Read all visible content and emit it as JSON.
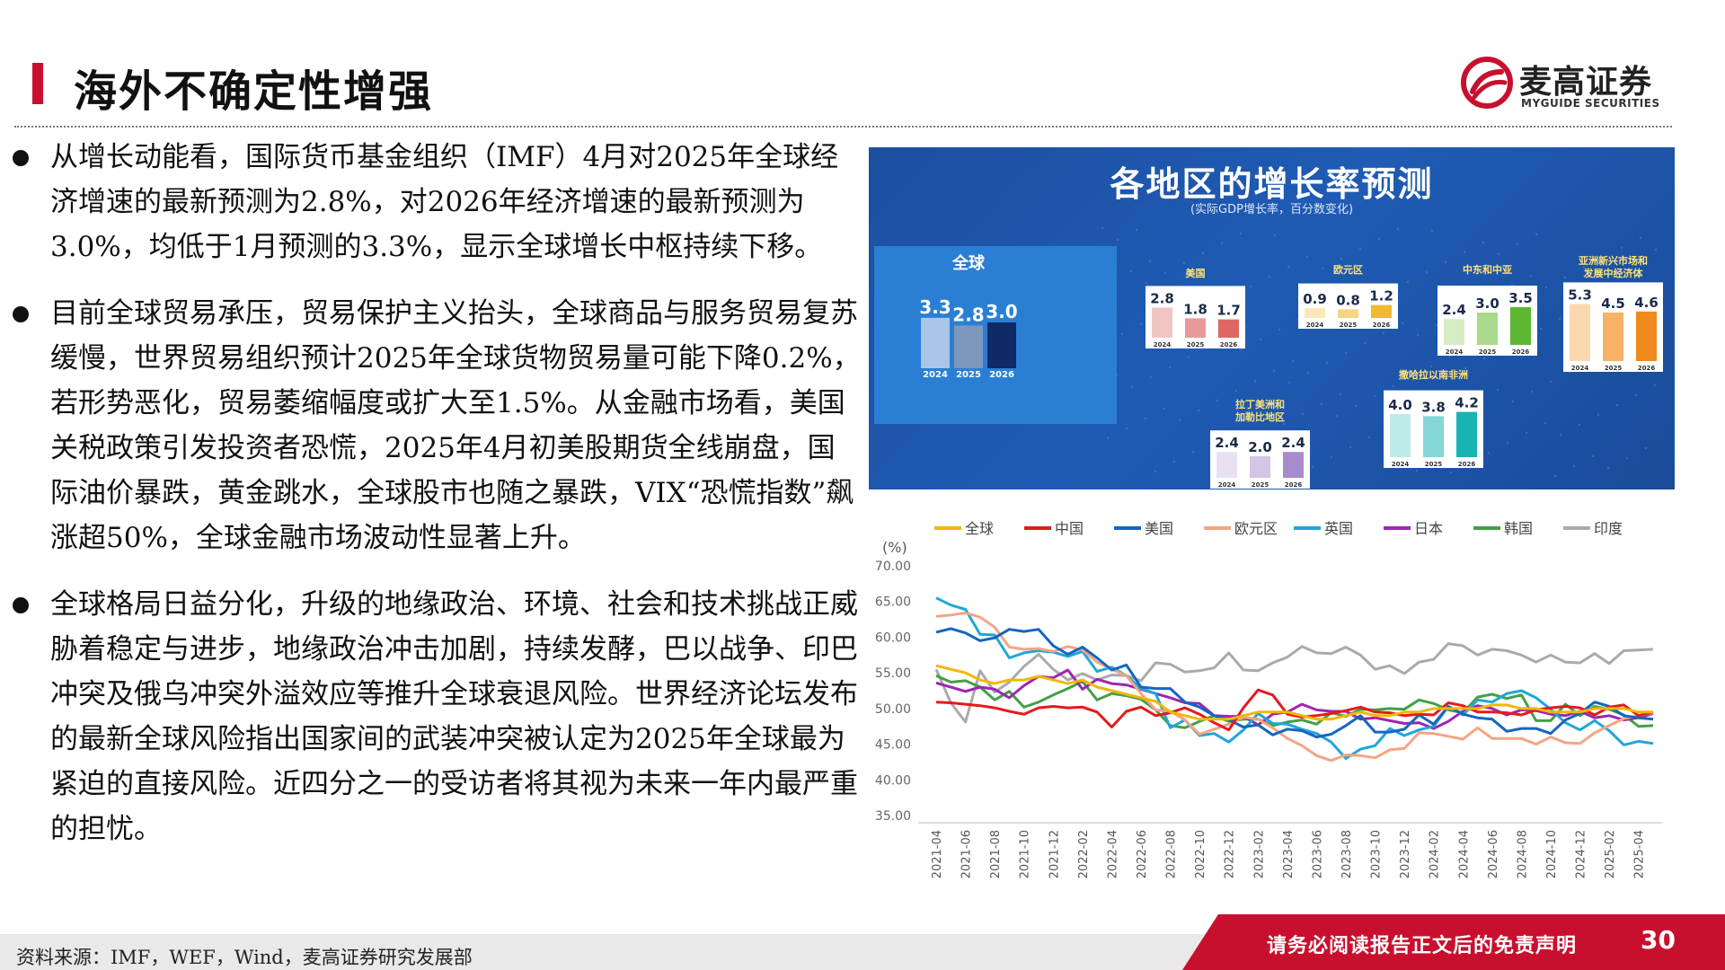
{
  "header": {
    "title": "海外不确定性增强",
    "logo_cn": "麦高证券",
    "logo_en": "MYGUIDE SECURITIES"
  },
  "bullets": [
    "从增长动能看，国际货币基金组织（IMF）4月对2025年全球经济增速的最新预测为2.8%，对2026年经济增速的最新预测为3.0%，均低于1月预测的3.3%，显示全球增长中枢持续下移。",
    "目前全球贸易承压，贸易保护主义抬头，全球商品与服务贸易复苏缓慢，世界贸易组织预计2025年全球货物贸易量可能下降0.2%，若形势恶化，贸易萎缩幅度或扩大至1.5%。从金融市场看，美国关税政策引发投资者恐慌，2025年4月初美股期货全线崩盘，国际油价暴跌，黄金跳水，全球股市也随之暴跌，VIX“恐慌指数”飙涨超50%，全球金融市场波动性显著上升。",
    "全球格局日益分化，升级的地缘政治、环境、社会和技术挑战正威胁着稳定与进步，地缘政治冲击加剧，持续发酵，巴以战争、印巴冲突及俄乌冲突外溢效应等推升全球衰退风险。世界经济论坛发布的最新全球风险指出国家间的武装冲突被认定为2025年全球最为紧迫的直接风险。近四分之一的受访者将其视为未来一年内最严重的担忧。"
  ],
  "forecast": {
    "title": "各地区的增长率预测",
    "subtitle": "(实际GDP增长率，百分数变化)",
    "years": [
      "2024",
      "2025",
      "2026"
    ],
    "groups": [
      {
        "name": "全球",
        "values": [
          3.3,
          2.8,
          3.0
        ],
        "labels": [
          "3.3",
          "2.8",
          "3.0"
        ],
        "colors": [
          "#a9c6e8",
          "#7d97bd",
          "#0f2a66"
        ]
      },
      {
        "name": "美国",
        "values": [
          2.8,
          1.8,
          1.7
        ],
        "labels": [
          "2.8",
          "1.8",
          "1.7"
        ],
        "colors": [
          "#f2c5c5",
          "#e89a9a",
          "#e06666"
        ]
      },
      {
        "name": "欧元区",
        "values": [
          0.9,
          0.8,
          1.2
        ],
        "labels": [
          "0.9",
          "0.8",
          "1.2"
        ],
        "colors": [
          "#fbe7b8",
          "#f7d486",
          "#f2b92e"
        ]
      },
      {
        "name": "中东和中亚",
        "values": [
          2.4,
          3.0,
          3.5
        ],
        "labels": [
          "2.4",
          "3.0",
          "3.5"
        ],
        "colors": [
          "#d6ecc4",
          "#a9d98a",
          "#5cb833"
        ]
      },
      {
        "name": "亚洲新兴市场和",
        "name2": "发展中经济体",
        "values": [
          5.3,
          4.5,
          4.6
        ],
        "labels": [
          "5.3",
          "4.5",
          "4.6"
        ],
        "colors": [
          "#fbd9b0",
          "#f7b266",
          "#f08a1c"
        ]
      },
      {
        "name": "拉丁美洲和",
        "name2": "加勒比地区",
        "values": [
          2.4,
          2.0,
          2.4
        ],
        "labels": [
          "2.4",
          "2.0",
          "2.4"
        ],
        "colors": [
          "#e9e0f2",
          "#d4c4e6",
          "#a88bcc"
        ]
      },
      {
        "name": "撒哈拉以南非洲",
        "values": [
          4.0,
          3.8,
          4.2
        ],
        "labels": [
          "4.0",
          "3.8",
          "4.2"
        ],
        "colors": [
          "#bfeaea",
          "#85d6d6",
          "#19b3b3"
        ]
      }
    ]
  },
  "chart_data": {
    "type": "line",
    "ylabel": "(%)",
    "ylim": [
      35,
      70
    ],
    "yticks": [
      "70.00",
      "65.00",
      "60.00",
      "55.00",
      "50.00",
      "45.00",
      "40.00",
      "35.00"
    ],
    "x": [
      "2021-04",
      "2021-05",
      "2021-06",
      "2021-07",
      "2021-08",
      "2021-09",
      "2021-10",
      "2021-11",
      "2021-12",
      "2022-01",
      "2022-02",
      "2022-03",
      "2022-04",
      "2022-05",
      "2022-06",
      "2022-07",
      "2022-08",
      "2022-09",
      "2022-10",
      "2022-11",
      "2022-12",
      "2023-01",
      "2023-02",
      "2023-03",
      "2023-04",
      "2023-05",
      "2023-06",
      "2023-07",
      "2023-08",
      "2023-09",
      "2023-10",
      "2023-11",
      "2023-12",
      "2024-01",
      "2024-02",
      "2024-03",
      "2024-04",
      "2024-05",
      "2024-06",
      "2024-07",
      "2024-08",
      "2024-09",
      "2024-10",
      "2024-11",
      "2024-12",
      "2025-01",
      "2025-02",
      "2025-03",
      "2025-04",
      "2025-05"
    ],
    "xticks": [
      "2021-04",
      "2021-06",
      "2021-08",
      "2021-10",
      "2021-12",
      "2022-02",
      "2022-04",
      "2022-06",
      "2022-08",
      "2022-10",
      "2022-12",
      "2023-02",
      "2023-04",
      "2023-06",
      "2023-08",
      "2023-10",
      "2023-12",
      "2024-02",
      "2024-04",
      "2024-06",
      "2024-08",
      "2024-10",
      "2024-12",
      "2025-02",
      "2025-04"
    ],
    "series": [
      {
        "name": "全球",
        "color": "#f2b705",
        "values": [
          56,
          55.5,
          55,
          54,
          53.5,
          54,
          54,
          54.5,
          54,
          53.5,
          54,
          53,
          52.5,
          52,
          51.5,
          51,
          49.5,
          49,
          48.5,
          48.5,
          48.5,
          49,
          49.5,
          49.5,
          49.5,
          49,
          48.5,
          48.5,
          49,
          49.5,
          49,
          49,
          49.5,
          49.5,
          50,
          50,
          50,
          50,
          50.5,
          50.5,
          50,
          50,
          49.5,
          49.5,
          49.5,
          50,
          50,
          50,
          49.5,
          49.5
        ]
      },
      {
        "name": "中国",
        "color": "#e41a1c",
        "values": [
          50.9,
          50.8,
          50.6,
          50.4,
          50.1,
          49.6,
          49.2,
          50.1,
          50.3,
          50.1,
          50.2,
          49.5,
          47.4,
          49.6,
          50.2,
          49.0,
          49.4,
          50.1,
          49.2,
          48.0,
          47.0,
          50.1,
          52.6,
          51.9,
          49.2,
          48.8,
          49.0,
          49.3,
          49.7,
          50.2,
          49.5,
          49.4,
          49.0,
          49.2,
          49.1,
          50.8,
          50.4,
          49.5,
          49.5,
          49.4,
          49.1,
          49.8,
          50.1,
          50.3,
          50.1,
          49.1,
          50.2,
          50.5,
          49.0,
          49.5
        ]
      },
      {
        "name": "美国",
        "color": "#1565c0",
        "values": [
          60.7,
          61.2,
          60.6,
          59.5,
          59.9,
          61.1,
          60.8,
          61.1,
          58.8,
          57.6,
          58.6,
          57.1,
          55.4,
          56.1,
          53.0,
          52.8,
          52.8,
          50.9,
          50.2,
          49.0,
          48.4,
          47.4,
          47.7,
          46.3,
          47.1,
          46.9,
          46.0,
          46.4,
          47.6,
          49.0,
          46.7,
          46.7,
          47.1,
          49.1,
          47.8,
          50.3,
          49.2,
          48.7,
          48.5,
          46.8,
          47.2,
          47.2,
          46.5,
          48.4,
          49.3,
          50.9,
          50.3,
          49.0,
          48.7,
          48.5
        ]
      },
      {
        "name": "欧元区",
        "color": "#f4a582",
        "values": [
          62.9,
          63.1,
          63.4,
          62.8,
          61.4,
          58.6,
          58.3,
          58.4,
          58.0,
          58.7,
          58.2,
          56.5,
          55.5,
          54.6,
          52.1,
          49.8,
          49.6,
          48.4,
          46.4,
          47.1,
          47.8,
          48.8,
          48.5,
          47.3,
          45.8,
          44.8,
          43.4,
          42.7,
          43.5,
          43.4,
          43.1,
          44.2,
          44.4,
          46.6,
          46.5,
          46.1,
          45.7,
          47.3,
          45.8,
          45.8,
          45.8,
          45.0,
          46.0,
          45.2,
          45.1,
          46.6,
          47.6,
          48.6,
          49.0,
          49.4
        ]
      },
      {
        "name": "英国",
        "color": "#1fa7d9",
        "values": [
          65.5,
          64.5,
          63.9,
          60.4,
          60.3,
          57.1,
          57.8,
          58.1,
          57.9,
          57.3,
          58.0,
          55.2,
          55.8,
          54.6,
          52.8,
          52.1,
          47.3,
          48.4,
          46.2,
          46.5,
          45.3,
          47.0,
          49.3,
          47.9,
          47.8,
          47.1,
          46.5,
          45.3,
          43.0,
          44.3,
          44.8,
          47.2,
          46.2,
          47.0,
          47.5,
          50.3,
          49.1,
          51.2,
          50.9,
          52.1,
          52.5,
          51.5,
          49.9,
          48.0,
          47.0,
          48.3,
          46.9,
          44.9,
          45.4,
          45.1
        ]
      },
      {
        "name": "日本",
        "color": "#9c27b0",
        "values": [
          53.6,
          53.0,
          52.4,
          53.0,
          52.7,
          51.5,
          53.2,
          54.5,
          54.3,
          55.4,
          52.7,
          54.1,
          53.5,
          53.3,
          52.7,
          52.1,
          51.5,
          50.8,
          50.7,
          49.0,
          48.9,
          48.9,
          47.7,
          49.2,
          49.5,
          50.6,
          49.8,
          49.6,
          49.6,
          48.5,
          48.7,
          48.3,
          47.9,
          48.0,
          47.2,
          48.2,
          49.6,
          50.4,
          50.0,
          49.1,
          49.8,
          49.7,
          49.2,
          49.0,
          49.6,
          48.7,
          49.0,
          48.4,
          48.7,
          49.3
        ]
      },
      {
        "name": "韩国",
        "color": "#43a047",
        "values": [
          54.6,
          53.7,
          53.9,
          53.0,
          51.2,
          52.4,
          50.2,
          50.9,
          51.9,
          52.8,
          53.8,
          51.2,
          52.1,
          51.8,
          51.3,
          49.8,
          47.6,
          47.3,
          48.2,
          49.0,
          48.2,
          48.5,
          48.5,
          47.6,
          48.1,
          48.4,
          47.8,
          49.4,
          48.9,
          49.9,
          49.8,
          50.0,
          49.9,
          51.2,
          50.7,
          49.8,
          49.4,
          51.6,
          52.0,
          51.4,
          51.9,
          48.3,
          48.3,
          50.6,
          49.0,
          50.3,
          49.9,
          49.1,
          47.5,
          47.6
        ]
      },
      {
        "name": "印度",
        "color": "#aaaaaa",
        "values": [
          55.5,
          50.8,
          48.1,
          55.3,
          52.3,
          53.7,
          55.9,
          57.6,
          55.5,
          54.0,
          54.9,
          54.0,
          54.7,
          54.6,
          53.9,
          56.4,
          56.2,
          55.1,
          55.3,
          55.7,
          57.8,
          55.4,
          55.3,
          56.4,
          57.2,
          58.7,
          57.8,
          57.7,
          58.6,
          57.5,
          55.5,
          56.0,
          54.9,
          56.5,
          56.9,
          59.1,
          58.8,
          57.5,
          58.3,
          58.1,
          57.5,
          56.5,
          57.5,
          56.5,
          56.4,
          57.7,
          56.3,
          58.1,
          58.2,
          58.3
        ]
      }
    ]
  },
  "footer": {
    "source": "资料来源：IMF，WEF，Wind，麦高证券研究发展部",
    "disclaimer": "请务必阅读报告正文后的免责声明",
    "page": "30"
  }
}
